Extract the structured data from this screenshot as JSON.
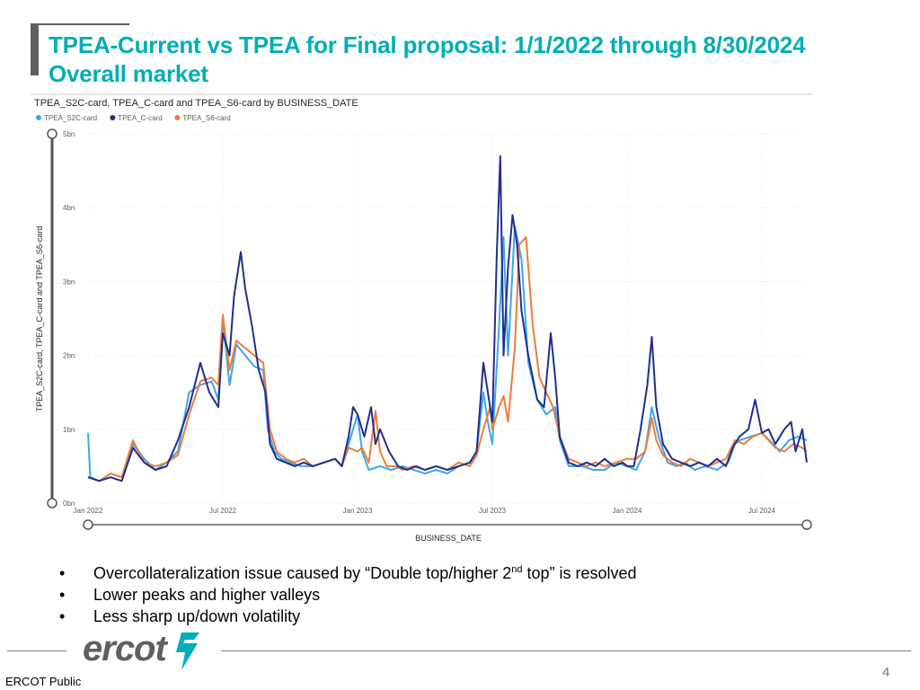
{
  "slide": {
    "title_line1": "TPEA-Current vs TPEA for Final proposal: 1/1/2022 through 8/30/2024",
    "title_line2": "Overall market",
    "page_number": "4",
    "classification": "ERCOT Public",
    "logo_text": "ercot",
    "colors": {
      "title": "#00aeb7",
      "logo_gray": "#5f6062",
      "logo_teal": "#00aeb7"
    }
  },
  "bullets": [
    {
      "pre": "Overcollateralization issue caused by “Double top/higher 2",
      "sup": "nd",
      "post": " top” is resolved"
    },
    {
      "pre": "Lower peaks and higher valleys",
      "sup": "",
      "post": ""
    },
    {
      "pre": "Less sharp up/down volatility",
      "sup": "",
      "post": ""
    }
  ],
  "chart_data": {
    "type": "line",
    "title": "TPEA_S2C-card, TPEA_C-card and TPEA_S6-card by BUSINESS_DATE",
    "xlabel": "BUSINESS_DATE",
    "ylabel": "TPEA_S2C-card, TPEA_C-card and TPEA_S6-card",
    "x_unit": "months since Jan 2022",
    "xlim": [
      0,
      32
    ],
    "ylim": [
      0,
      5
    ],
    "y_ticks": [
      {
        "v": 0,
        "label": "0bn"
      },
      {
        "v": 1,
        "label": "1bn"
      },
      {
        "v": 2,
        "label": "2bn"
      },
      {
        "v": 3,
        "label": "3bn"
      },
      {
        "v": 4,
        "label": "4bn"
      },
      {
        "v": 5,
        "label": "5bn"
      }
    ],
    "x_ticks": [
      {
        "v": 0,
        "label": "Jan 2022"
      },
      {
        "v": 6,
        "label": "Jul 2022"
      },
      {
        "v": 12,
        "label": "Jan 2023"
      },
      {
        "v": 18,
        "label": "Jul 2023"
      },
      {
        "v": 24,
        "label": "Jan 2024"
      },
      {
        "v": 30,
        "label": "Jul 2024"
      }
    ],
    "legend_position": "top-left",
    "grid": true,
    "series": [
      {
        "name": "TPEA_S2C-card",
        "color": "#3fa7e8",
        "points": [
          [
            0,
            0.95
          ],
          [
            0.1,
            0.35
          ],
          [
            0.5,
            0.3
          ],
          [
            1,
            0.4
          ],
          [
            1.5,
            0.35
          ],
          [
            2,
            0.8
          ],
          [
            2.5,
            0.6
          ],
          [
            3,
            0.45
          ],
          [
            3.5,
            0.55
          ],
          [
            4,
            0.7
          ],
          [
            4.5,
            1.5
          ],
          [
            5,
            1.6
          ],
          [
            5.5,
            1.65
          ],
          [
            5.8,
            1.4
          ],
          [
            6,
            2.5
          ],
          [
            6.3,
            1.6
          ],
          [
            6.6,
            2.15
          ],
          [
            7,
            2.0
          ],
          [
            7.4,
            1.85
          ],
          [
            7.8,
            1.8
          ],
          [
            8,
            1.0
          ],
          [
            8.3,
            0.7
          ],
          [
            8.6,
            0.6
          ],
          [
            9,
            0.55
          ],
          [
            9.5,
            0.5
          ],
          [
            10,
            0.5
          ],
          [
            10.5,
            0.55
          ],
          [
            11,
            0.6
          ],
          [
            11.3,
            0.5
          ],
          [
            11.6,
            0.8
          ],
          [
            12,
            1.2
          ],
          [
            12.2,
            0.7
          ],
          [
            12.5,
            0.45
          ],
          [
            13,
            0.5
          ],
          [
            13.5,
            0.45
          ],
          [
            14,
            0.5
          ],
          [
            14.5,
            0.45
          ],
          [
            15,
            0.4
          ],
          [
            15.5,
            0.45
          ],
          [
            16,
            0.4
          ],
          [
            16.5,
            0.5
          ],
          [
            17,
            0.55
          ],
          [
            17.3,
            0.7
          ],
          [
            17.6,
            1.5
          ],
          [
            17.8,
            1.1
          ],
          [
            18,
            0.8
          ],
          [
            18.3,
            2.4
          ],
          [
            18.5,
            3.6
          ],
          [
            18.7,
            2.0
          ],
          [
            19,
            3.75
          ],
          [
            19.3,
            3.3
          ],
          [
            19.6,
            1.9
          ],
          [
            20,
            1.4
          ],
          [
            20.4,
            1.2
          ],
          [
            20.8,
            1.3
          ],
          [
            21,
            0.85
          ],
          [
            21.4,
            0.5
          ],
          [
            22,
            0.5
          ],
          [
            22.5,
            0.45
          ],
          [
            23,
            0.45
          ],
          [
            23.5,
            0.55
          ],
          [
            24,
            0.5
          ],
          [
            24.4,
            0.45
          ],
          [
            24.8,
            0.7
          ],
          [
            25.1,
            1.3
          ],
          [
            25.4,
            0.9
          ],
          [
            25.8,
            0.55
          ],
          [
            26.2,
            0.5
          ],
          [
            26.6,
            0.55
          ],
          [
            27,
            0.45
          ],
          [
            27.5,
            0.5
          ],
          [
            28,
            0.45
          ],
          [
            28.5,
            0.55
          ],
          [
            28.8,
            0.8
          ],
          [
            29,
            0.85
          ],
          [
            29.5,
            0.9
          ],
          [
            30,
            0.95
          ],
          [
            30.5,
            0.8
          ],
          [
            30.8,
            0.7
          ],
          [
            31.2,
            0.85
          ],
          [
            31.6,
            0.9
          ],
          [
            32,
            0.85
          ]
        ]
      },
      {
        "name": "TPEA_C-card",
        "color": "#1f2f91",
        "points": [
          [
            0,
            0.35
          ],
          [
            0.5,
            0.3
          ],
          [
            1,
            0.35
          ],
          [
            1.5,
            0.3
          ],
          [
            2,
            0.75
          ],
          [
            2.5,
            0.55
          ],
          [
            3,
            0.45
          ],
          [
            3.5,
            0.5
          ],
          [
            4,
            0.85
          ],
          [
            4.5,
            1.3
          ],
          [
            5,
            1.9
          ],
          [
            5.4,
            1.5
          ],
          [
            5.8,
            1.3
          ],
          [
            6,
            2.3
          ],
          [
            6.3,
            2.0
          ],
          [
            6.5,
            2.8
          ],
          [
            6.8,
            3.4
          ],
          [
            7,
            2.9
          ],
          [
            7.3,
            2.4
          ],
          [
            7.6,
            1.8
          ],
          [
            7.9,
            1.5
          ],
          [
            8.1,
            0.8
          ],
          [
            8.4,
            0.6
          ],
          [
            8.8,
            0.55
          ],
          [
            9.2,
            0.5
          ],
          [
            9.6,
            0.55
          ],
          [
            10,
            0.5
          ],
          [
            10.5,
            0.55
          ],
          [
            11,
            0.6
          ],
          [
            11.3,
            0.5
          ],
          [
            11.6,
            0.9
          ],
          [
            11.8,
            1.3
          ],
          [
            12,
            1.2
          ],
          [
            12.3,
            0.9
          ],
          [
            12.6,
            1.3
          ],
          [
            12.8,
            0.8
          ],
          [
            13,
            1.0
          ],
          [
            13.4,
            0.7
          ],
          [
            13.8,
            0.5
          ],
          [
            14.2,
            0.45
          ],
          [
            14.6,
            0.5
          ],
          [
            15,
            0.45
          ],
          [
            15.5,
            0.5
          ],
          [
            16,
            0.45
          ],
          [
            16.5,
            0.5
          ],
          [
            17,
            0.55
          ],
          [
            17.3,
            0.7
          ],
          [
            17.6,
            1.9
          ],
          [
            17.9,
            1.3
          ],
          [
            18,
            1.1
          ],
          [
            18.2,
            3.4
          ],
          [
            18.35,
            4.7
          ],
          [
            18.5,
            2.0
          ],
          [
            18.7,
            3.2
          ],
          [
            18.9,
            3.9
          ],
          [
            19.1,
            3.5
          ],
          [
            19.3,
            2.6
          ],
          [
            19.6,
            2.0
          ],
          [
            20,
            1.4
          ],
          [
            20.3,
            1.3
          ],
          [
            20.6,
            2.3
          ],
          [
            20.8,
            1.7
          ],
          [
            21,
            0.9
          ],
          [
            21.4,
            0.55
          ],
          [
            21.8,
            0.5
          ],
          [
            22.2,
            0.55
          ],
          [
            22.6,
            0.5
          ],
          [
            23,
            0.6
          ],
          [
            23.4,
            0.5
          ],
          [
            23.8,
            0.55
          ],
          [
            24,
            0.5
          ],
          [
            24.3,
            0.5
          ],
          [
            24.6,
            1.0
          ],
          [
            24.9,
            1.6
          ],
          [
            25.1,
            2.25
          ],
          [
            25.3,
            1.3
          ],
          [
            25.6,
            0.8
          ],
          [
            26,
            0.6
          ],
          [
            26.4,
            0.55
          ],
          [
            26.8,
            0.5
          ],
          [
            27.2,
            0.55
          ],
          [
            27.6,
            0.5
          ],
          [
            28,
            0.6
          ],
          [
            28.4,
            0.5
          ],
          [
            28.7,
            0.75
          ],
          [
            29,
            0.9
          ],
          [
            29.4,
            1.0
          ],
          [
            29.7,
            1.4
          ],
          [
            30,
            0.95
          ],
          [
            30.3,
            1.0
          ],
          [
            30.6,
            0.8
          ],
          [
            31,
            1.0
          ],
          [
            31.3,
            1.1
          ],
          [
            31.5,
            0.7
          ],
          [
            31.8,
            1.0
          ],
          [
            32,
            0.55
          ]
        ]
      },
      {
        "name": "TPEA_S6-card",
        "color": "#ed7d3a",
        "points": [
          [
            0,
            0.35
          ],
          [
            0.5,
            0.3
          ],
          [
            1,
            0.4
          ],
          [
            1.5,
            0.35
          ],
          [
            2,
            0.85
          ],
          [
            2.5,
            0.55
          ],
          [
            3,
            0.5
          ],
          [
            3.5,
            0.55
          ],
          [
            4,
            0.65
          ],
          [
            4.5,
            1.2
          ],
          [
            5,
            1.65
          ],
          [
            5.5,
            1.7
          ],
          [
            5.8,
            1.6
          ],
          [
            6,
            2.55
          ],
          [
            6.3,
            1.8
          ],
          [
            6.6,
            2.2
          ],
          [
            7,
            2.1
          ],
          [
            7.4,
            2.0
          ],
          [
            7.8,
            1.9
          ],
          [
            8.1,
            1.0
          ],
          [
            8.4,
            0.7
          ],
          [
            8.8,
            0.6
          ],
          [
            9.2,
            0.55
          ],
          [
            9.6,
            0.6
          ],
          [
            10,
            0.5
          ],
          [
            10.5,
            0.55
          ],
          [
            11,
            0.6
          ],
          [
            11.3,
            0.5
          ],
          [
            11.6,
            0.75
          ],
          [
            12,
            0.7
          ],
          [
            12.2,
            0.75
          ],
          [
            12.5,
            0.55
          ],
          [
            12.8,
            1.25
          ],
          [
            13,
            0.7
          ],
          [
            13.3,
            0.5
          ],
          [
            13.7,
            0.5
          ],
          [
            14,
            0.45
          ],
          [
            14.5,
            0.5
          ],
          [
            15,
            0.45
          ],
          [
            15.5,
            0.5
          ],
          [
            16,
            0.45
          ],
          [
            16.5,
            0.55
          ],
          [
            17,
            0.5
          ],
          [
            17.3,
            0.65
          ],
          [
            17.6,
            1.0
          ],
          [
            17.9,
            1.3
          ],
          [
            18,
            1.0
          ],
          [
            18.3,
            1.3
          ],
          [
            18.5,
            1.45
          ],
          [
            18.7,
            1.1
          ],
          [
            19,
            2.1
          ],
          [
            19.2,
            3.5
          ],
          [
            19.5,
            3.6
          ],
          [
            19.8,
            2.4
          ],
          [
            20.1,
            1.7
          ],
          [
            20.4,
            1.5
          ],
          [
            20.7,
            1.3
          ],
          [
            21,
            0.9
          ],
          [
            21.4,
            0.6
          ],
          [
            21.8,
            0.55
          ],
          [
            22.2,
            0.5
          ],
          [
            22.6,
            0.55
          ],
          [
            23,
            0.5
          ],
          [
            23.5,
            0.55
          ],
          [
            24,
            0.6
          ],
          [
            24.4,
            0.6
          ],
          [
            24.8,
            0.7
          ],
          [
            25.1,
            1.15
          ],
          [
            25.3,
            0.85
          ],
          [
            25.6,
            0.65
          ],
          [
            26,
            0.55
          ],
          [
            26.4,
            0.5
          ],
          [
            26.8,
            0.6
          ],
          [
            27.2,
            0.55
          ],
          [
            27.6,
            0.5
          ],
          [
            28,
            0.55
          ],
          [
            28.4,
            0.6
          ],
          [
            28.8,
            0.85
          ],
          [
            29.2,
            0.8
          ],
          [
            29.6,
            0.9
          ],
          [
            30,
            0.95
          ],
          [
            30.3,
            0.85
          ],
          [
            30.6,
            0.75
          ],
          [
            31,
            0.7
          ],
          [
            31.4,
            0.8
          ],
          [
            31.8,
            0.75
          ],
          [
            32,
            0.7
          ]
        ]
      }
    ]
  }
}
